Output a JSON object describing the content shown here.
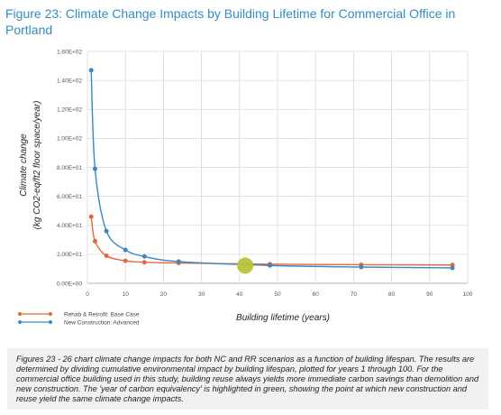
{
  "figure_title": "Figure 23: Climate Change Impacts by Building Lifetime for Commercial Office in Portland",
  "caption": "Figures 23 - 26 chart climate change impacts for both NC and RR scenarios as a function of building lifespan. The results are determined by dividing cumulative environmental impact by building lifespan, plotted for years 1 through 100. For the commercial office building used in this study, building reuse always yields more immediate carbon savings than demolition and new construction. The 'year of carbon equivalency' is highlighted in green, showing the point at which new construction and reuse yield the same climate change impacts.",
  "chart_data": {
    "type": "line",
    "title": "",
    "xlabel": "Building lifetime (years)",
    "ylabel_line1": "Climate change",
    "ylabel_line2": "(kg CO2-eq/ft2 floor space/year)",
    "xlim": [
      0,
      100
    ],
    "ylim": [
      0,
      160
    ],
    "x_ticks": [
      0,
      10,
      20,
      30,
      40,
      50,
      60,
      70,
      80,
      90,
      100
    ],
    "y_ticks": [
      0,
      20,
      40,
      60,
      80,
      100,
      120,
      140,
      160
    ],
    "y_tick_labels": [
      "0.00E+00",
      "2.00E+01",
      "4.00E+01",
      "6.00E+01",
      "8.00E+01",
      "1.00E+02",
      "1.20E+02",
      "1.40E+02",
      "1.60E+02"
    ],
    "grid": true,
    "legend_position": "bottom-left",
    "series": [
      {
        "name": "Rehab & Retrofit: Base Case",
        "color": "#e4683b",
        "x": [
          1,
          2,
          5,
          10,
          15,
          24,
          48,
          72,
          96
        ],
        "y": [
          46,
          29,
          19,
          15.5,
          14.5,
          14,
          13.2,
          12.8,
          12.6
        ]
      },
      {
        "name": "New Construction: Advanced",
        "color": "#3a87c1",
        "x": [
          1,
          2,
          5,
          10,
          15,
          24,
          48,
          72,
          96
        ],
        "y": [
          147,
          79,
          36,
          23,
          18.5,
          15,
          12.3,
          11.2,
          10.6
        ]
      }
    ],
    "highlight": {
      "x": 41.5,
      "y": 12.2,
      "color": "#b7c436"
    }
  }
}
